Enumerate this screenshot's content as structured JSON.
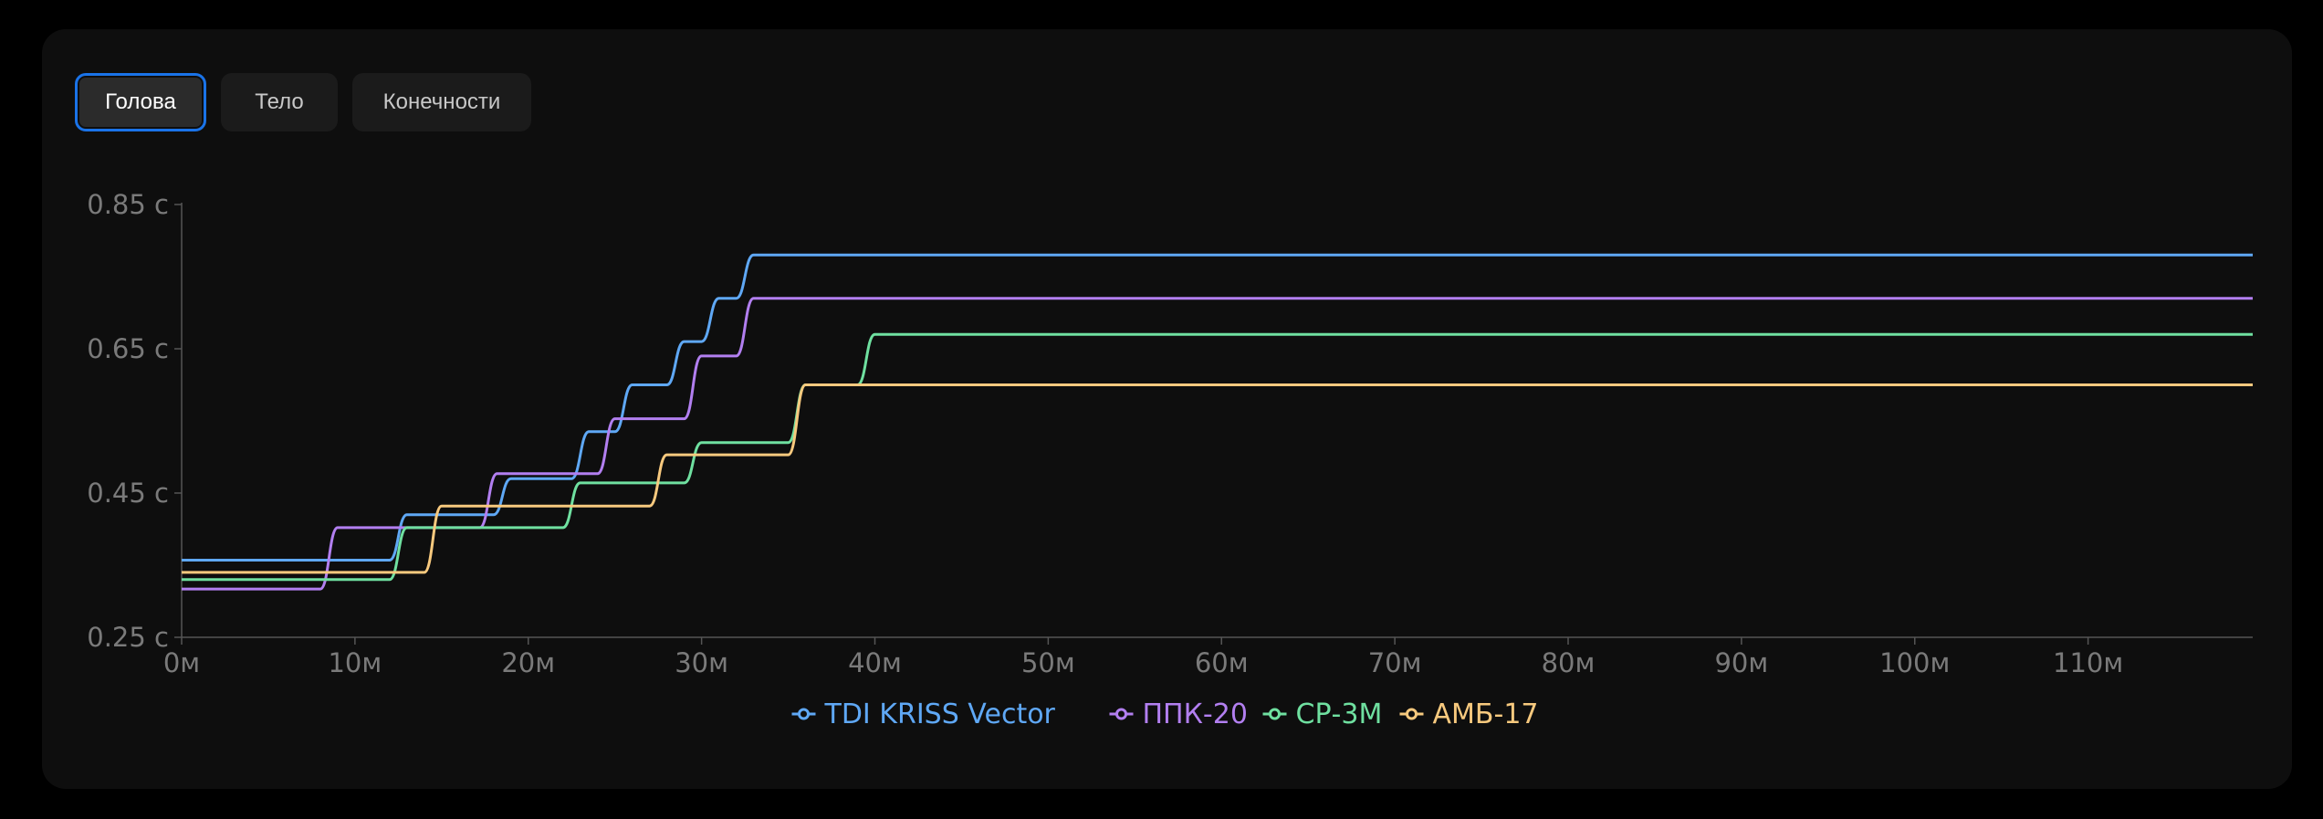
{
  "tabs": [
    {
      "label": "Голова",
      "active": true
    },
    {
      "label": "Тело",
      "active": false
    },
    {
      "label": "Конечности",
      "active": false
    }
  ],
  "chart_data": {
    "type": "line",
    "step": true,
    "xlim": [
      0,
      119.5
    ],
    "ylim": [
      0.25,
      0.85
    ],
    "x_ticks": [
      0,
      10,
      20,
      30,
      40,
      50,
      60,
      70,
      80,
      90,
      100,
      110
    ],
    "x_tick_labels": [
      "0м",
      "10м",
      "20м",
      "30м",
      "40м",
      "50м",
      "60м",
      "70м",
      "80м",
      "90м",
      "100м",
      "110м"
    ],
    "y_ticks": [
      0.25,
      0.45,
      0.65,
      0.85
    ],
    "y_tick_labels": [
      "0.25 с",
      "0.45 с",
      "0.65 с",
      "0.85 с"
    ],
    "legend_position": "bottom-center",
    "grid": false,
    "series": [
      {
        "name": "TDI KRISS Vector",
        "color": "#5fa8f5",
        "points": [
          [
            0,
            0.357
          ],
          [
            12,
            0.357
          ],
          [
            13,
            0.42
          ],
          [
            18,
            0.42
          ],
          [
            19,
            0.47
          ],
          [
            22.5,
            0.47
          ],
          [
            23.5,
            0.535
          ],
          [
            25,
            0.535
          ],
          [
            26,
            0.6
          ],
          [
            28,
            0.6
          ],
          [
            29,
            0.66
          ],
          [
            30,
            0.66
          ],
          [
            31,
            0.72
          ],
          [
            32,
            0.72
          ],
          [
            33,
            0.78
          ],
          [
            119.5,
            0.78
          ]
        ]
      },
      {
        "name": "ППК-20",
        "color": "#b27ff0",
        "points": [
          [
            0,
            0.317
          ],
          [
            8,
            0.317
          ],
          [
            9,
            0.402
          ],
          [
            17.2,
            0.402
          ],
          [
            18.2,
            0.477
          ],
          [
            24,
            0.477
          ],
          [
            25,
            0.553
          ],
          [
            29,
            0.553
          ],
          [
            30,
            0.64
          ],
          [
            32,
            0.64
          ],
          [
            33,
            0.72
          ],
          [
            119.5,
            0.72
          ]
        ]
      },
      {
        "name": "СР-3М",
        "color": "#6fe0a0",
        "points": [
          [
            0,
            0.33
          ],
          [
            12,
            0.33
          ],
          [
            13,
            0.402
          ],
          [
            22,
            0.402
          ],
          [
            23,
            0.464
          ],
          [
            29,
            0.464
          ],
          [
            30,
            0.52
          ],
          [
            35,
            0.52
          ],
          [
            36,
            0.6
          ],
          [
            39,
            0.6
          ],
          [
            40,
            0.67
          ],
          [
            119.5,
            0.67
          ]
        ]
      },
      {
        "name": "АМБ-17",
        "color": "#f7c97e",
        "points": [
          [
            0,
            0.34
          ],
          [
            14,
            0.34
          ],
          [
            15,
            0.432
          ],
          [
            27,
            0.432
          ],
          [
            28,
            0.503
          ],
          [
            35,
            0.503
          ],
          [
            36,
            0.6
          ],
          [
            119.5,
            0.6
          ]
        ]
      }
    ]
  }
}
